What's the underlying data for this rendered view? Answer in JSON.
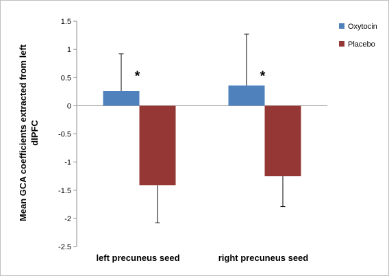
{
  "chart_data": {
    "type": "bar",
    "categories": [
      "left precuneus seed",
      "right precuneus seed"
    ],
    "series": [
      {
        "name": "Oxytocin",
        "values": [
          0.26,
          0.36
        ],
        "error_plus": [
          0.66,
          0.91
        ],
        "color": "#4f81bd"
      },
      {
        "name": "Placebo",
        "values": [
          -1.41,
          -1.25
        ],
        "error_minus": [
          0.67,
          0.54
        ],
        "color": "#953735"
      }
    ],
    "ylabel_lines": [
      "Mean GCA coefficients extracted from left",
      "dlPFC"
    ],
    "ylim": [
      -2.5,
      1.5
    ],
    "yticks": [
      "1.5",
      "1",
      "0.5",
      "0",
      "-0.5",
      "-1",
      "-1.5",
      "-2",
      "-2.5"
    ],
    "annotations": [
      "*",
      "*"
    ],
    "legend_position": "top-right",
    "grid": false
  }
}
